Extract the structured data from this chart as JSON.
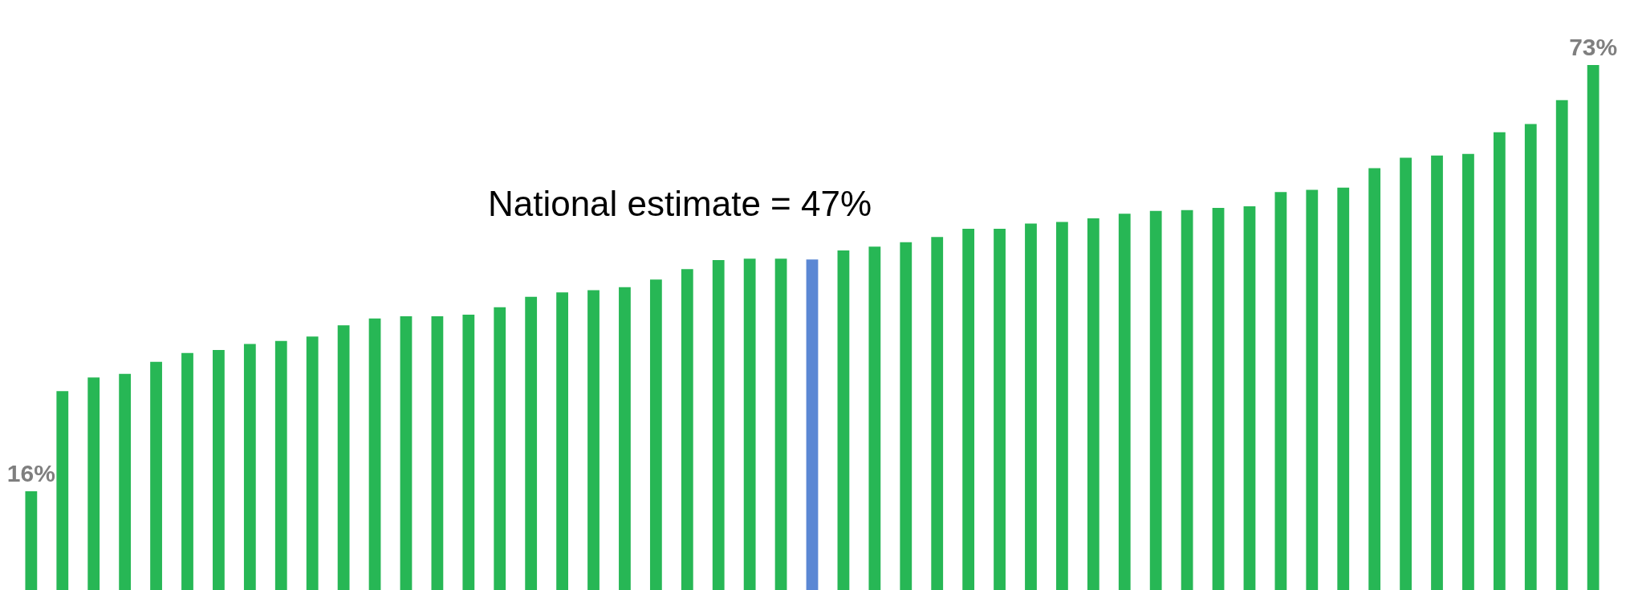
{
  "chart_data": {
    "type": "bar",
    "categories": [
      null,
      null,
      null,
      null,
      null,
      null,
      null,
      null,
      null,
      null,
      null,
      null,
      null,
      null,
      null,
      null,
      null,
      null,
      null,
      null,
      null,
      null,
      null,
      null,
      null,
      null,
      null,
      null,
      null,
      null,
      null,
      null,
      null,
      null,
      null,
      null,
      null,
      null,
      null,
      null,
      null,
      null,
      null,
      null,
      null,
      null,
      null,
      null,
      null,
      null,
      null
    ],
    "values": [
      16,
      29.4,
      31.2,
      31.7,
      33.3,
      34.5,
      34.9,
      35.7,
      36.1,
      36.7,
      38.2,
      39.1,
      39.4,
      39.4,
      39.6,
      40.6,
      42,
      42.6,
      42.9,
      43.3,
      44.3,
      45.7,
      46.9,
      47.1,
      47.1,
      47,
      48.2,
      48.7,
      49.3,
      50,
      51.1,
      51.1,
      51.8,
      52,
      52.5,
      53.1,
      53.5,
      53.6,
      53.9,
      54.1,
      56,
      56.3,
      56.6,
      59.2,
      60.6,
      60.9,
      61.1,
      64,
      65.1,
      68.3,
      73
    ],
    "colors": [
      "#27b755",
      "#27b755",
      "#27b755",
      "#27b755",
      "#27b755",
      "#27b755",
      "#27b755",
      "#27b755",
      "#27b755",
      "#27b755",
      "#27b755",
      "#27b755",
      "#27b755",
      "#27b755",
      "#27b755",
      "#27b755",
      "#27b755",
      "#27b755",
      "#27b755",
      "#27b755",
      "#27b755",
      "#27b755",
      "#27b755",
      "#27b755",
      "#27b755",
      "#5b87d4",
      "#27b755",
      "#27b755",
      "#27b755",
      "#27b755",
      "#27b755",
      "#27b755",
      "#27b755",
      "#27b755",
      "#27b755",
      "#27b755",
      "#27b755",
      "#27b755",
      "#27b755",
      "#27b755",
      "#27b755",
      "#27b755",
      "#27b755",
      "#27b755",
      "#27b755",
      "#27b755",
      "#27b755",
      "#27b755",
      "#27b755",
      "#27b755",
      "#27b755"
    ],
    "value_labels": [
      "16%",
      null,
      null,
      null,
      null,
      null,
      null,
      null,
      null,
      null,
      null,
      null,
      null,
      null,
      null,
      null,
      null,
      null,
      null,
      null,
      null,
      null,
      null,
      null,
      null,
      null,
      null,
      null,
      null,
      null,
      null,
      null,
      null,
      null,
      null,
      null,
      null,
      null,
      null,
      null,
      null,
      null,
      null,
      null,
      null,
      null,
      null,
      null,
      null,
      null,
      "73%"
    ],
    "annotations": [
      "National estimate = 47%"
    ]
  }
}
